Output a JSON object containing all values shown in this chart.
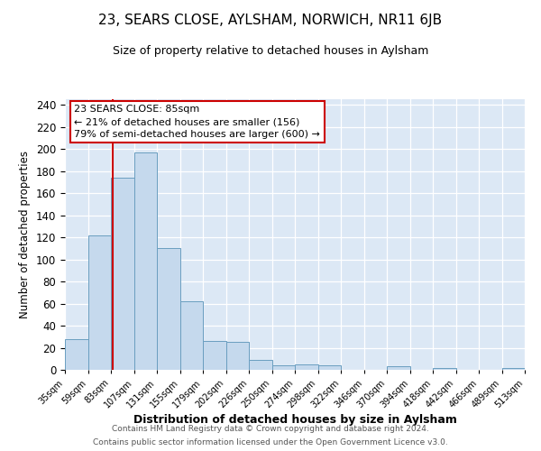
{
  "title": "23, SEARS CLOSE, AYLSHAM, NORWICH, NR11 6JB",
  "subtitle": "Size of property relative to detached houses in Aylsham",
  "xlabel": "Distribution of detached houses by size in Aylsham",
  "ylabel": "Number of detached properties",
  "bin_edges": [
    35,
    59,
    83,
    107,
    131,
    155,
    179,
    202,
    226,
    250,
    274,
    298,
    322,
    346,
    370,
    394,
    418,
    442,
    466,
    489,
    513
  ],
  "bar_heights": [
    28,
    122,
    174,
    197,
    110,
    62,
    26,
    25,
    9,
    4,
    5,
    4,
    0,
    0,
    3,
    0,
    2,
    0,
    0,
    2
  ],
  "bar_color": "#c5d9ed",
  "bar_edge_color": "#6a9ec0",
  "tick_labels": [
    "35sqm",
    "59sqm",
    "83sqm",
    "107sqm",
    "131sqm",
    "155sqm",
    "179sqm",
    "202sqm",
    "226sqm",
    "250sqm",
    "274sqm",
    "298sqm",
    "322sqm",
    "346sqm",
    "370sqm",
    "394sqm",
    "418sqm",
    "442sqm",
    "466sqm",
    "489sqm",
    "513sqm"
  ],
  "vline_x": 85,
  "vline_color": "#cc0000",
  "annotation_text": "23 SEARS CLOSE: 85sqm\n← 21% of detached houses are smaller (156)\n79% of semi-detached houses are larger (600) →",
  "ylim": [
    0,
    245
  ],
  "yticks": [
    0,
    20,
    40,
    60,
    80,
    100,
    120,
    140,
    160,
    180,
    200,
    220,
    240
  ],
  "background_color": "#dce8f5",
  "footer_line1": "Contains HM Land Registry data © Crown copyright and database right 2024.",
  "footer_line2": "Contains public sector information licensed under the Open Government Licence v3.0."
}
